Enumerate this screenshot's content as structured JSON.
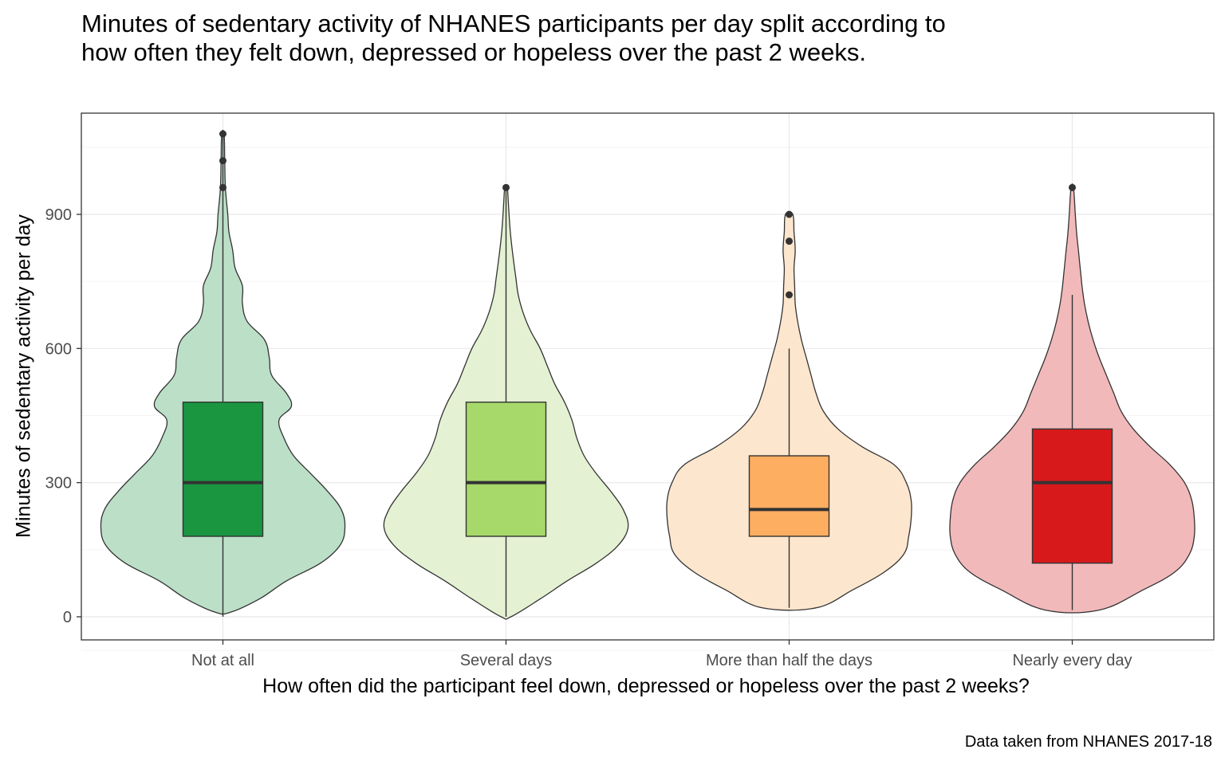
{
  "chart_data": {
    "type": "violin",
    "title": "Minutes of sedentary activity of NHANES participants per day split according to how often they felt down, depressed or hopeless over the past 2 weeks.",
    "xlabel": "How often did the participant feel down, depressed or hopeless over the past 2 weeks?",
    "ylabel": "Minutes of sedentary activity per day",
    "caption": "Data taken from NHANES 2017-18",
    "ylim": [
      -90,
      1100
    ],
    "yticks": [
      0,
      300,
      600,
      900
    ],
    "grid": true,
    "categories": [
      "Not at all",
      "Several days",
      "More than half the days",
      "Nearly every day"
    ],
    "series": [
      {
        "category": "Not at all",
        "violin_color": "#bcdfc7",
        "box_color": "#1a9641",
        "box": {
          "min": 0,
          "q1": 180,
          "median": 300,
          "q3": 480,
          "max": 1080
        },
        "outliers": [
          960,
          1020,
          1080
        ],
        "density": [
          [
            10,
            0.06
          ],
          [
            40,
            0.3
          ],
          [
            80,
            0.52
          ],
          [
            120,
            0.8
          ],
          [
            160,
            0.96
          ],
          [
            200,
            1.0
          ],
          [
            240,
            0.97
          ],
          [
            280,
            0.86
          ],
          [
            320,
            0.72
          ],
          [
            360,
            0.58
          ],
          [
            400,
            0.5
          ],
          [
            440,
            0.46
          ],
          [
            470,
            0.56
          ],
          [
            500,
            0.52
          ],
          [
            540,
            0.4
          ],
          [
            580,
            0.38
          ],
          [
            620,
            0.34
          ],
          [
            660,
            0.2
          ],
          [
            700,
            0.16
          ],
          [
            740,
            0.16
          ],
          [
            780,
            0.1
          ],
          [
            820,
            0.08
          ],
          [
            860,
            0.05
          ],
          [
            900,
            0.04
          ],
          [
            960,
            0.02
          ],
          [
            1020,
            0.015
          ],
          [
            1080,
            0.01
          ]
        ]
      },
      {
        "category": "Several days",
        "violin_color": "#e4f1d3",
        "box_color": "#a6d96a",
        "box": {
          "min": 0,
          "q1": 180,
          "median": 300,
          "q3": 480,
          "max": 960
        },
        "outliers": [
          960
        ],
        "density": [
          [
            0,
            0.04
          ],
          [
            40,
            0.28
          ],
          [
            80,
            0.5
          ],
          [
            120,
            0.74
          ],
          [
            160,
            0.92
          ],
          [
            200,
            1.0
          ],
          [
            240,
            0.96
          ],
          [
            280,
            0.86
          ],
          [
            320,
            0.74
          ],
          [
            360,
            0.64
          ],
          [
            400,
            0.58
          ],
          [
            440,
            0.54
          ],
          [
            480,
            0.48
          ],
          [
            520,
            0.4
          ],
          [
            560,
            0.34
          ],
          [
            600,
            0.28
          ],
          [
            640,
            0.2
          ],
          [
            680,
            0.14
          ],
          [
            720,
            0.1
          ],
          [
            760,
            0.08
          ],
          [
            800,
            0.06
          ],
          [
            860,
            0.035
          ],
          [
            920,
            0.02
          ],
          [
            960,
            0.01
          ]
        ]
      },
      {
        "category": "More than half the days",
        "violin_color": "#fde6ce",
        "box_color": "#fdae61",
        "box": {
          "min": 20,
          "q1": 180,
          "median": 240,
          "q3": 360,
          "max": 600
        },
        "outliers": [
          720,
          840,
          900
        ],
        "density": [
          [
            20,
            0.22
          ],
          [
            60,
            0.52
          ],
          [
            100,
            0.78
          ],
          [
            140,
            0.94
          ],
          [
            180,
            0.98
          ],
          [
            220,
            1.0
          ],
          [
            260,
            1.0
          ],
          [
            300,
            0.96
          ],
          [
            340,
            0.86
          ],
          [
            380,
            0.6
          ],
          [
            420,
            0.4
          ],
          [
            460,
            0.28
          ],
          [
            500,
            0.22
          ],
          [
            540,
            0.18
          ],
          [
            580,
            0.14
          ],
          [
            620,
            0.1
          ],
          [
            660,
            0.07
          ],
          [
            700,
            0.05
          ],
          [
            740,
            0.045
          ],
          [
            780,
            0.04
          ],
          [
            820,
            0.05
          ],
          [
            860,
            0.04
          ],
          [
            900,
            0.03
          ]
        ]
      },
      {
        "category": "Nearly every day",
        "violin_color": "#f2b9ba",
        "box_color": "#d7191c",
        "box": {
          "min": 15,
          "q1": 120,
          "median": 300,
          "q3": 420,
          "max": 720
        },
        "outliers": [
          960
        ],
        "density": [
          [
            15,
            0.22
          ],
          [
            60,
            0.58
          ],
          [
            100,
            0.84
          ],
          [
            140,
            0.96
          ],
          [
            180,
            1.0
          ],
          [
            220,
            1.0
          ],
          [
            260,
            0.98
          ],
          [
            300,
            0.92
          ],
          [
            340,
            0.8
          ],
          [
            380,
            0.64
          ],
          [
            420,
            0.5
          ],
          [
            460,
            0.4
          ],
          [
            500,
            0.34
          ],
          [
            540,
            0.28
          ],
          [
            580,
            0.22
          ],
          [
            620,
            0.17
          ],
          [
            660,
            0.13
          ],
          [
            700,
            0.1
          ],
          [
            740,
            0.08
          ],
          [
            780,
            0.065
          ],
          [
            820,
            0.05
          ],
          [
            860,
            0.035
          ],
          [
            900,
            0.025
          ],
          [
            960,
            0.01
          ]
        ]
      }
    ]
  }
}
